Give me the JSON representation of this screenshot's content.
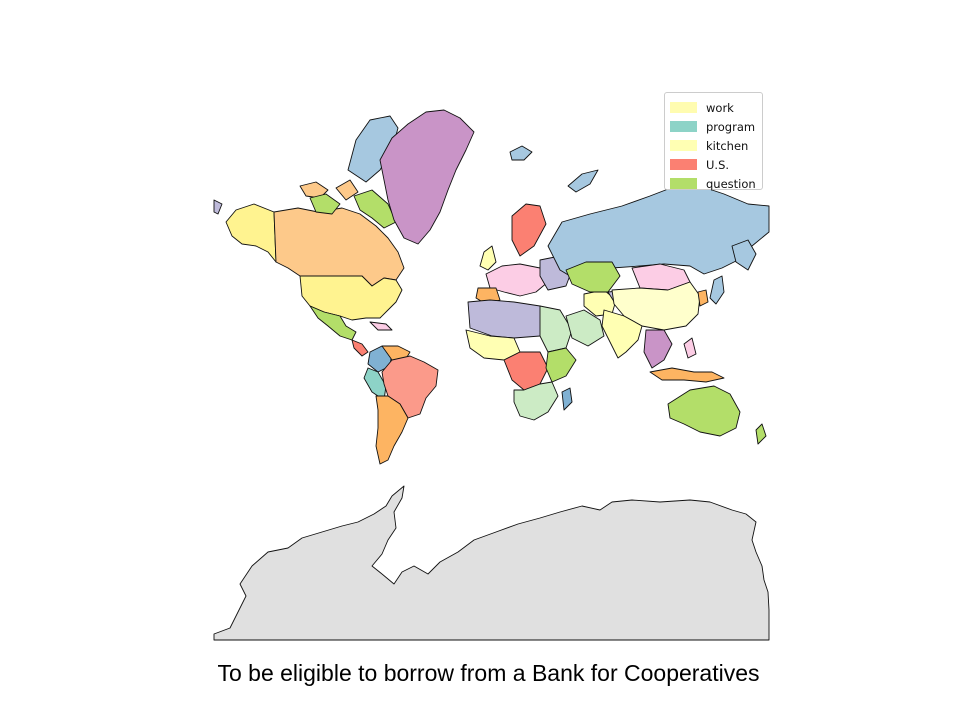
{
  "caption": "To be eligible to borrow from a Bank for Cooperatives",
  "legend": [
    {
      "label": "work",
      "color": "#fffcb0"
    },
    {
      "label": "program",
      "color": "#8dd3c7"
    },
    {
      "label": "kitchen",
      "color": "#ffffb3"
    },
    {
      "label": "U.S.",
      "color": "#fb8072"
    },
    {
      "label": "question",
      "color": "#b3de69"
    }
  ],
  "colors": {
    "antarctica": "#e0e0e0",
    "palette": [
      "#8dd3c7",
      "#ffffb3",
      "#bebada",
      "#fb8072",
      "#80b1d3",
      "#fdb462",
      "#b3de69",
      "#fccde5",
      "#c994c7",
      "#ffed6f",
      "#a6cee3",
      "#fdd0a2"
    ]
  },
  "regions": [
    {
      "name": "Alaska",
      "color": "#ffed6f"
    },
    {
      "name": "Canada",
      "color": "#fdc086"
    },
    {
      "name": "United States",
      "color": "#ffed6f"
    },
    {
      "name": "Greenland",
      "color": "#c994c7"
    },
    {
      "name": "Russia",
      "color": "#a6c8e0"
    },
    {
      "name": "Brazil",
      "color": "#fb8072"
    },
    {
      "name": "Argentina",
      "color": "#fdb462"
    },
    {
      "name": "Australia",
      "color": "#b3de69"
    },
    {
      "name": "China",
      "color": "#ffffcc"
    },
    {
      "name": "Kazakhstan",
      "color": "#b3de69"
    },
    {
      "name": "Antarctica",
      "color": "#e0e0e0"
    }
  ]
}
